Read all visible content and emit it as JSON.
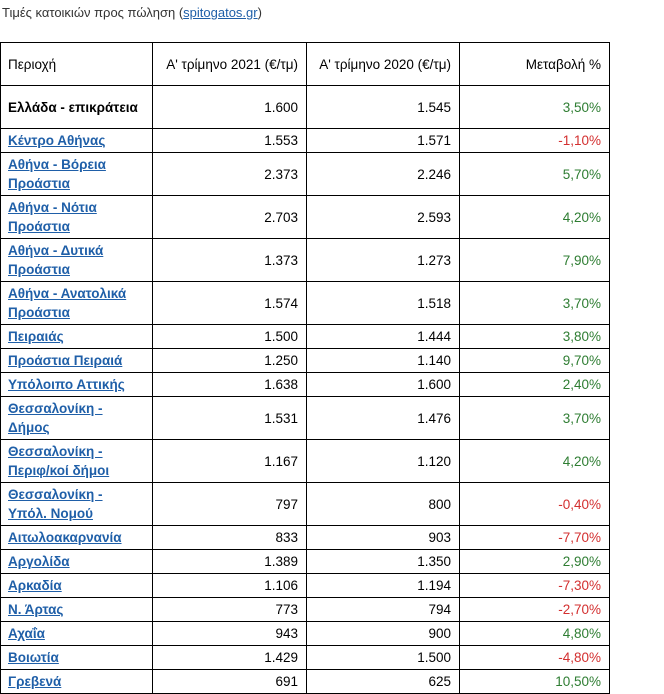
{
  "caption": {
    "prefix": "Τιμές κατοικιών προς πώληση (",
    "link": "spitogatos.gr",
    "suffix": ")"
  },
  "table": {
    "headers": [
      "Περιοχή",
      "Α' τρίμηνο 2021 (€/τμ)",
      "Α' τρίμηνο 2020 (€/τμ)",
      "Μεταβολή %"
    ],
    "rows": [
      {
        "region": "Ελλάδα - επικράτεια",
        "link": false,
        "v2021": "1.600",
        "v2020": "1.545",
        "change": "3,50%",
        "sign": "pos",
        "tall": true
      },
      {
        "region": "Κέντρο Αθήνας",
        "link": true,
        "v2021": "1.553",
        "v2020": "1.571",
        "change": "-1,10%",
        "sign": "neg",
        "tall": false
      },
      {
        "region": "Αθήνα - Βόρεια Προάστια",
        "link": true,
        "v2021": "2.373",
        "v2020": "2.246",
        "change": "5,70%",
        "sign": "pos",
        "tall": true
      },
      {
        "region": "Αθήνα - Νότια Προάστια",
        "link": true,
        "v2021": "2.703",
        "v2020": "2.593",
        "change": "4,20%",
        "sign": "pos",
        "tall": true
      },
      {
        "region": "Αθήνα - Δυτικά Προάστια",
        "link": true,
        "v2021": "1.373",
        "v2020": "1.273",
        "change": "7,90%",
        "sign": "pos",
        "tall": true
      },
      {
        "region": "Αθήνα - Ανατολικά Προάστια",
        "link": true,
        "v2021": "1.574",
        "v2020": "1.518",
        "change": "3,70%",
        "sign": "pos",
        "tall": true
      },
      {
        "region": "Πειραιάς",
        "link": true,
        "v2021": "1.500",
        "v2020": "1.444",
        "change": "3,80%",
        "sign": "pos",
        "tall": false
      },
      {
        "region": "Προάστια Πειραιά",
        "link": true,
        "v2021": "1.250",
        "v2020": "1.140",
        "change": "9,70%",
        "sign": "pos",
        "tall": false
      },
      {
        "region": "Υπόλοιπο Αττικής",
        "link": true,
        "v2021": "1.638",
        "v2020": "1.600",
        "change": "2,40%",
        "sign": "pos",
        "tall": false
      },
      {
        "region": "Θεσσαλονίκη - Δήμος",
        "link": true,
        "v2021": "1.531",
        "v2020": "1.476",
        "change": "3,70%",
        "sign": "pos",
        "tall": true
      },
      {
        "region": "Θεσσαλονίκη - Περιφ/κοί δήμοι",
        "link": true,
        "v2021": "1.167",
        "v2020": "1.120",
        "change": "4,20%",
        "sign": "pos",
        "tall": true
      },
      {
        "region": "Θεσσαλονίκη - Υπόλ. Νομού",
        "link": true,
        "v2021": "797",
        "v2020": "800",
        "change": "-0,40%",
        "sign": "neg",
        "tall": true
      },
      {
        "region": "Αιτωλοακαρνανία",
        "link": true,
        "v2021": "833",
        "v2020": "903",
        "change": "-7,70%",
        "sign": "neg",
        "tall": false
      },
      {
        "region": "Αργολίδα",
        "link": true,
        "v2021": "1.389",
        "v2020": "1.350",
        "change": "2,90%",
        "sign": "pos",
        "tall": false
      },
      {
        "region": "Αρκαδία",
        "link": true,
        "v2021": "1.106",
        "v2020": "1.194",
        "change": "-7,30%",
        "sign": "neg",
        "tall": false
      },
      {
        "region": "Ν. Άρτας",
        "link": true,
        "v2021": "773",
        "v2020": "794",
        "change": "-2,70%",
        "sign": "neg",
        "tall": false
      },
      {
        "region": "Αχαΐα",
        "link": true,
        "v2021": "943",
        "v2020": "900",
        "change": "4,80%",
        "sign": "pos",
        "tall": false
      },
      {
        "region": "Βοιωτία",
        "link": true,
        "v2021": "1.429",
        "v2020": "1.500",
        "change": "-4,80%",
        "sign": "neg",
        "tall": false
      },
      {
        "region": "Γρεβενά",
        "link": true,
        "v2021": "691",
        "v2020": "625",
        "change": "10,50%",
        "sign": "pos",
        "tall": false
      }
    ]
  },
  "colors": {
    "link": "#1f5fa8",
    "positive": "#2e7d32",
    "negative": "#d32f2f"
  }
}
